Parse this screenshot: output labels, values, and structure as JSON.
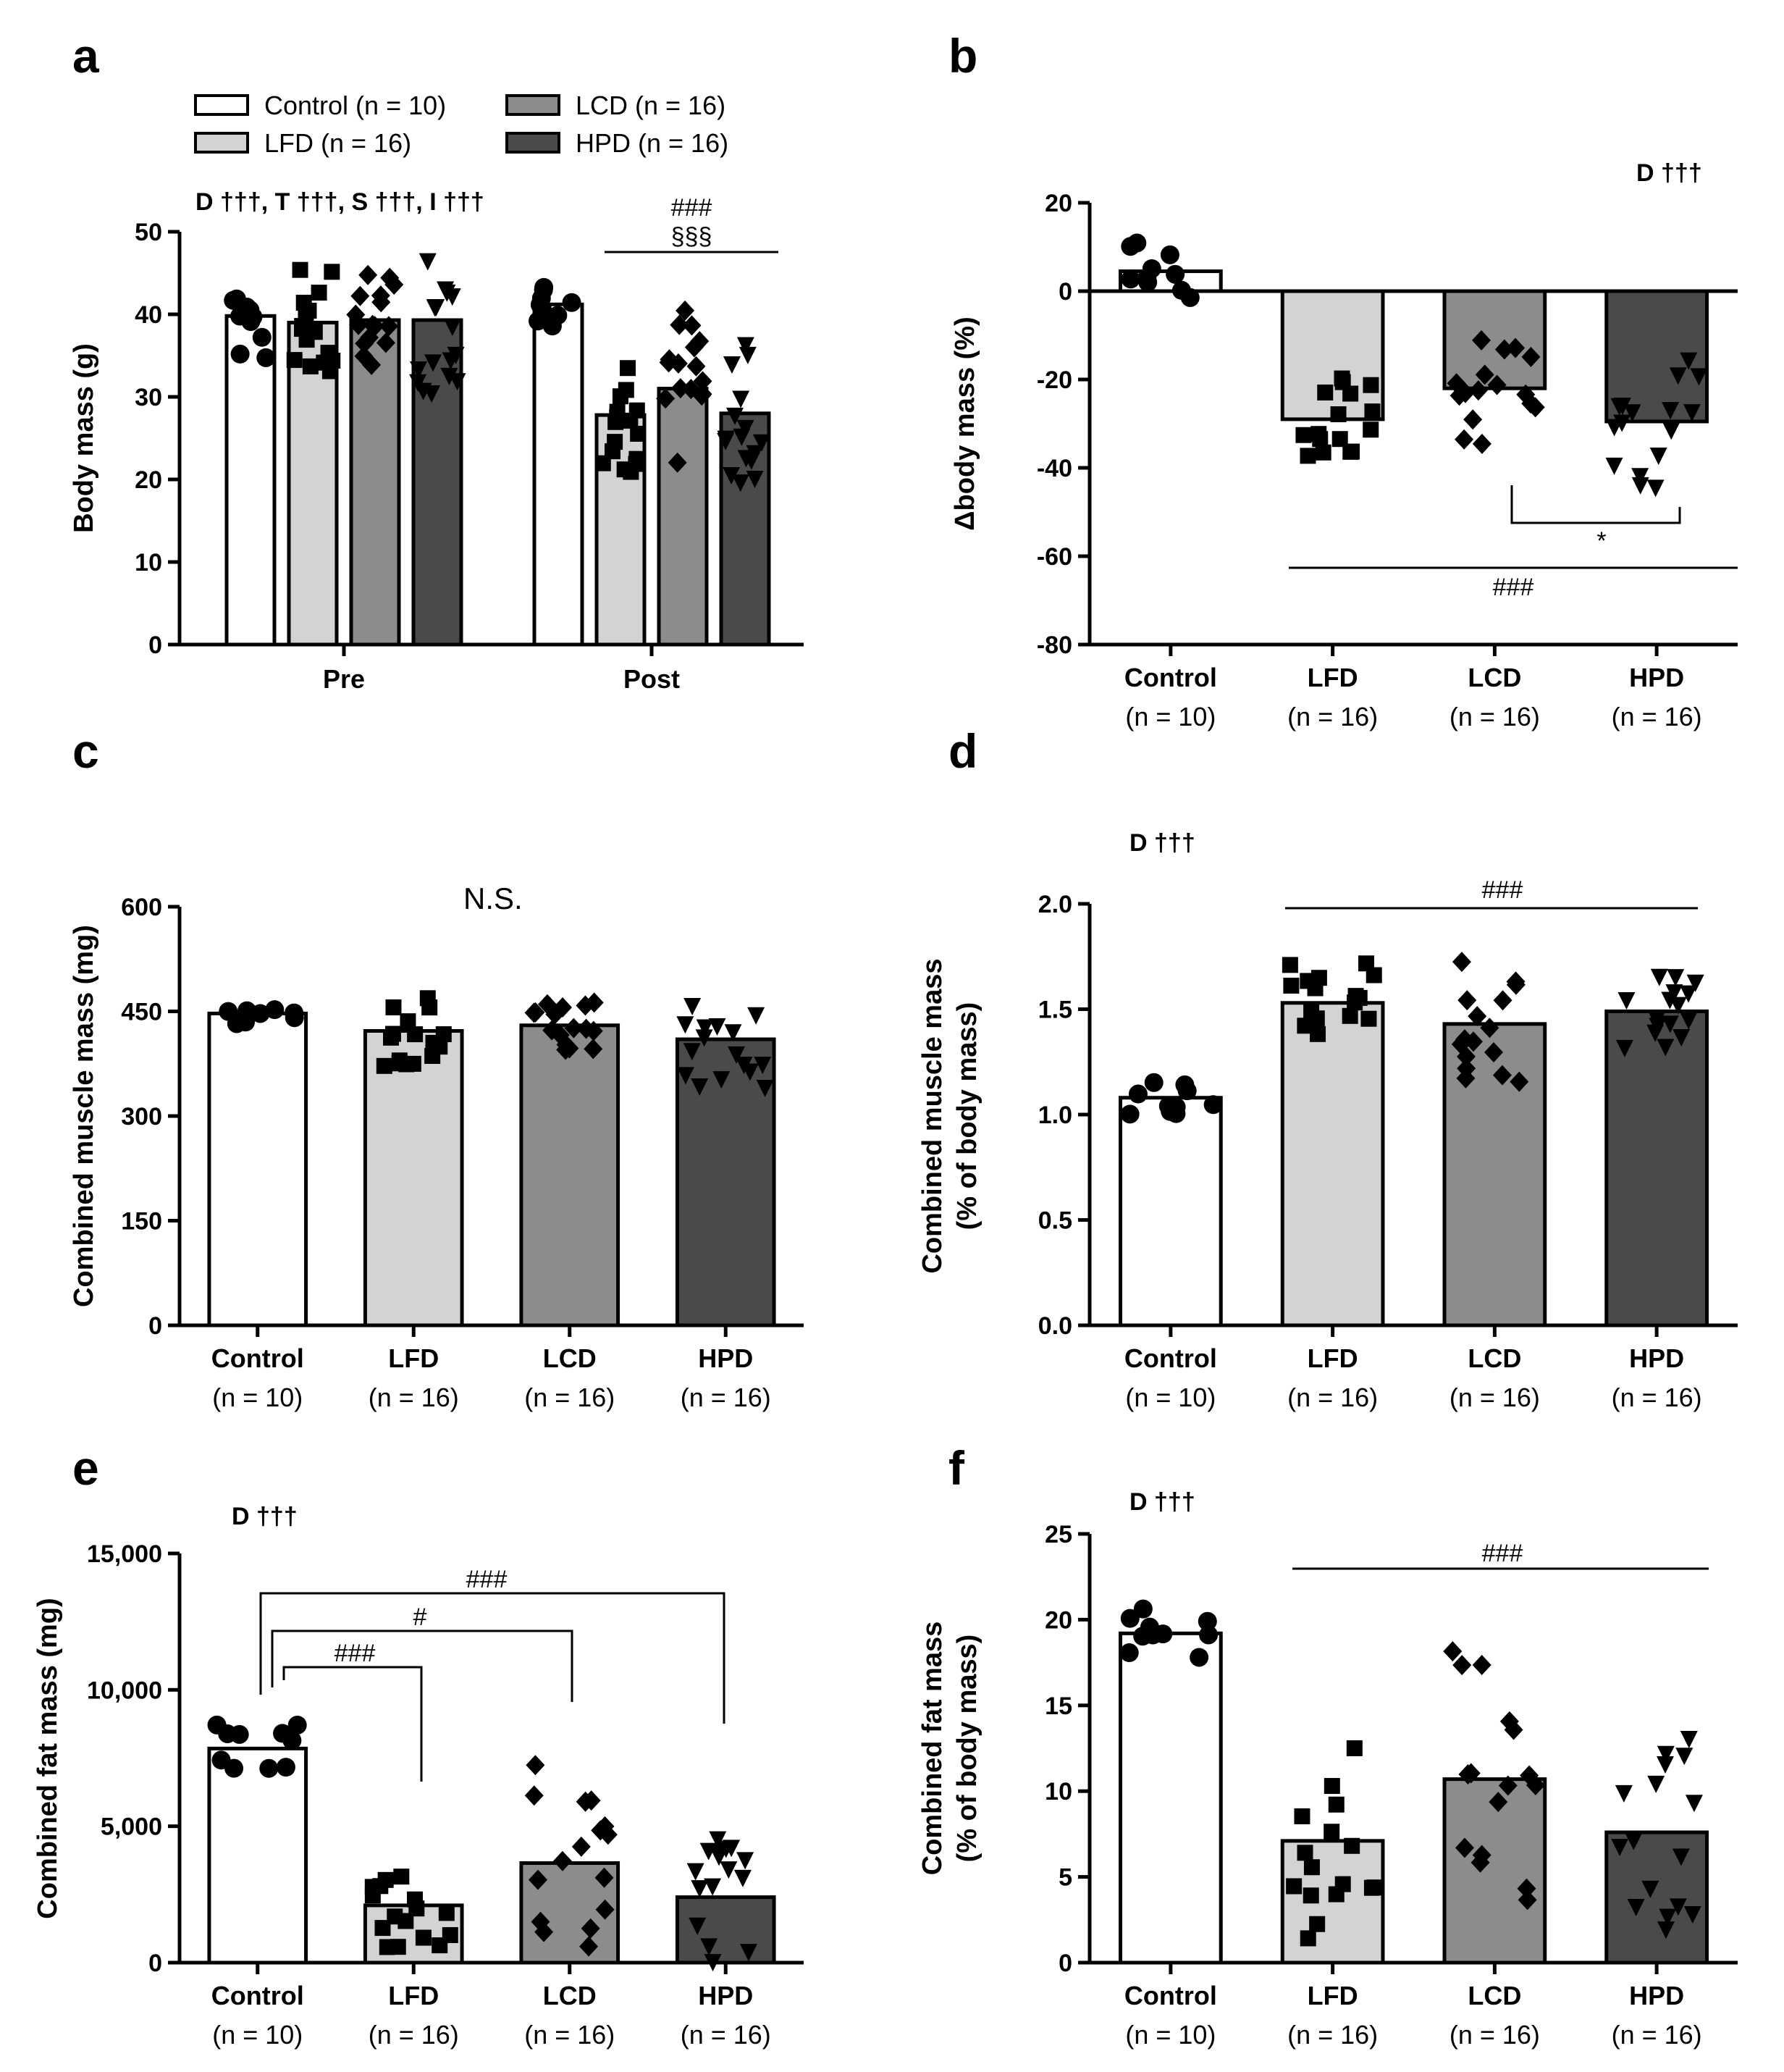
{
  "style": {
    "fills": {
      "Control": "#ffffff",
      "LFD": "#d3d3d3",
      "LCD": "#8c8c8c",
      "HPD": "#4a4a4a"
    },
    "stroke": "#000000"
  },
  "chart_data": [
    {
      "panel": "a",
      "type": "bar",
      "ylabel": "Body mass (g)",
      "ylim": [
        0,
        50
      ],
      "yticks": [
        "0",
        "10",
        "20",
        "30",
        "40",
        "50"
      ],
      "groups": [
        "Pre",
        "Post"
      ],
      "legend": [
        "Control (n = 10)",
        "LFD (n = 16)",
        "LCD (n = 16)",
        "HPD (n = 16)"
      ],
      "series": [
        {
          "name": "Control",
          "values": [
            39.8,
            41.2
          ]
        },
        {
          "name": "LFD",
          "values": [
            39.0,
            27.8
          ]
        },
        {
          "name": "LCD",
          "values": [
            39.3,
            31.0
          ]
        },
        {
          "name": "HPD",
          "values": [
            39.3,
            28.0
          ]
        }
      ],
      "annotation": "D †††, T †††, S †††, I †††",
      "sig_lines": [
        "###",
        "§§§"
      ]
    },
    {
      "panel": "b",
      "type": "bar",
      "ylabel": "Δbody mass (%)",
      "ylim": [
        -80,
        20
      ],
      "yticks": [
        "-80",
        "-60",
        "-40",
        "-20",
        "0",
        "20"
      ],
      "categories": [
        "Control",
        "LFD",
        "LCD",
        "HPD"
      ],
      "ncounts": [
        "(n = 10)",
        "(n = 16)",
        "(n = 16)",
        "(n = 16)"
      ],
      "values": [
        4.5,
        -29.0,
        -22.0,
        -29.5
      ],
      "annotation": "D †††",
      "sig_lines": [
        "*",
        "###"
      ]
    },
    {
      "panel": "c",
      "type": "bar",
      "ylabel": "Combined muscle mass (mg)",
      "ylim": [
        0,
        600
      ],
      "yticks": [
        "0",
        "150",
        "300",
        "450",
        "600"
      ],
      "categories": [
        "Control",
        "LFD",
        "LCD",
        "HPD"
      ],
      "ncounts": [
        "(n = 10)",
        "(n = 16)",
        "(n = 16)",
        "(n = 16)"
      ],
      "values": [
        447,
        422,
        430,
        410
      ],
      "annotation": "N.S."
    },
    {
      "panel": "d",
      "type": "bar",
      "ylabel": [
        "Combined muscle mass",
        "(% of body mass)"
      ],
      "ylim": [
        0,
        2.0
      ],
      "yticks": [
        "0.0",
        "0.5",
        "1.0",
        "1.5",
        "2.0"
      ],
      "categories": [
        "Control",
        "LFD",
        "LCD",
        "HPD"
      ],
      "ncounts": [
        "(n = 10)",
        "(n = 16)",
        "(n = 16)",
        "(n = 16)"
      ],
      "values": [
        1.08,
        1.53,
        1.43,
        1.49
      ],
      "annotation": "D †††",
      "sig_lines": [
        "###"
      ]
    },
    {
      "panel": "e",
      "type": "bar",
      "ylabel": "Combined fat mass (mg)",
      "ylim": [
        0,
        15000
      ],
      "yticks": [
        "0",
        "5,000",
        "10,000",
        "15,000"
      ],
      "categories": [
        "Control",
        "LFD",
        "LCD",
        "HPD"
      ],
      "ncounts": [
        "(n = 10)",
        "(n = 16)",
        "(n = 16)",
        "(n = 16)"
      ],
      "values": [
        7850,
        2100,
        3650,
        2400
      ],
      "annotation": "D †††",
      "sig_lines": [
        "###",
        "#",
        "###"
      ]
    },
    {
      "panel": "f",
      "type": "bar",
      "ylabel": [
        "Combined fat mass",
        "(% of body mass)"
      ],
      "ylim": [
        0,
        25
      ],
      "yticks": [
        "0",
        "5",
        "10",
        "15",
        "20",
        "25"
      ],
      "categories": [
        "Control",
        "LFD",
        "LCD",
        "HPD"
      ],
      "ncounts": [
        "(n = 10)",
        "(n = 16)",
        "(n = 16)",
        "(n = 16)"
      ],
      "values": [
        19.2,
        7.1,
        10.7,
        7.6
      ],
      "annotation": "D †††",
      "sig_lines": [
        "###"
      ]
    }
  ]
}
